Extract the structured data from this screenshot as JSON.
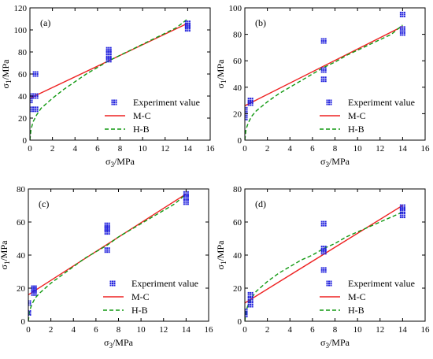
{
  "chart_data": [
    {
      "type": "scatter",
      "panel_label": "(a)",
      "xlabel": {
        "main": "σ",
        "sub": "3",
        "unit": "/MPa"
      },
      "ylabel": {
        "main": "σ",
        "sub": "1",
        "unit": "/MPa"
      },
      "xlim": [
        0,
        16
      ],
      "ylim": [
        0,
        120
      ],
      "xticks": [
        0,
        2,
        4,
        6,
        8,
        10,
        12,
        14,
        16
      ],
      "yticks": [
        0,
        20,
        40,
        60,
        80,
        100,
        120
      ],
      "legend_position": "lower-right",
      "series": [
        {
          "name": "Experiment value",
          "kind": "points",
          "color": "#2222dd",
          "x": [
            0,
            0,
            0,
            0.5,
            0.5,
            0.5,
            7,
            7,
            7,
            7,
            14,
            14,
            14
          ],
          "y": [
            28,
            36,
            40,
            28,
            40,
            60,
            73,
            76,
            80,
            82,
            101,
            104,
            106
          ]
        },
        {
          "name": "M-C",
          "kind": "line",
          "color": "#ee2222",
          "style": "solid",
          "x": [
            0,
            14
          ],
          "y": [
            38,
            106
          ]
        },
        {
          "name": "H-B",
          "kind": "line",
          "color": "#119911",
          "style": "dashed",
          "x": [
            0,
            0.1,
            0.3,
            0.6,
            1,
            2,
            3,
            4,
            5,
            6,
            7,
            8,
            9,
            10,
            11,
            12,
            13,
            14
          ],
          "y": [
            0,
            10,
            17,
            23,
            29,
            38,
            46,
            53,
            60,
            66,
            72,
            77,
            82,
            87,
            92,
            97,
            102,
            110
          ]
        }
      ]
    },
    {
      "type": "scatter",
      "panel_label": "(b)",
      "xlabel": {
        "main": "σ",
        "sub": "3",
        "unit": "/MPa"
      },
      "ylabel": {
        "main": "σ",
        "sub": "1",
        "unit": "/MPa"
      },
      "xlim": [
        0,
        16
      ],
      "ylim": [
        0,
        100
      ],
      "xticks": [
        0,
        2,
        4,
        6,
        8,
        10,
        12,
        14,
        16
      ],
      "yticks": [
        0,
        20,
        40,
        60,
        80,
        100
      ],
      "legend_position": "lower-right",
      "series": [
        {
          "name": "Experiment value",
          "kind": "points",
          "color": "#2222dd",
          "x": [
            0,
            0,
            0,
            0.5,
            0.5,
            7,
            7,
            7,
            14,
            14,
            14
          ],
          "y": [
            17,
            20,
            23,
            28,
            30,
            46,
            53,
            75,
            81,
            84,
            95
          ]
        },
        {
          "name": "M-C",
          "kind": "line",
          "color": "#ee2222",
          "style": "solid",
          "x": [
            0,
            14
          ],
          "y": [
            26,
            86
          ]
        },
        {
          "name": "H-B",
          "kind": "line",
          "color": "#119911",
          "style": "dashed",
          "x": [
            0,
            0.1,
            0.3,
            0.6,
            1,
            2,
            3,
            4,
            5,
            6,
            7,
            8,
            9,
            10,
            11,
            12,
            13,
            14
          ],
          "y": [
            0,
            8,
            13,
            18,
            22,
            29,
            35,
            40,
            45,
            50,
            55,
            59,
            64,
            68,
            72,
            76,
            80,
            87
          ]
        }
      ]
    },
    {
      "type": "scatter",
      "panel_label": "(c)",
      "xlabel": {
        "main": "σ",
        "sub": "3",
        "unit": "/MPa"
      },
      "ylabel": {
        "main": "σ",
        "sub": "1",
        "unit": "/MPa"
      },
      "xlim": [
        0,
        16
      ],
      "ylim": [
        0,
        80
      ],
      "xticks": [
        0,
        2,
        4,
        6,
        8,
        10,
        12,
        14,
        16
      ],
      "yticks": [
        0,
        20,
        40,
        60,
        80
      ],
      "legend_position": "lower-right",
      "series": [
        {
          "name": "Experiment value",
          "kind": "points",
          "color": "#2222dd",
          "x": [
            0,
            0,
            0.5,
            0.5,
            0.5,
            7,
            7,
            7,
            7,
            14,
            14,
            14
          ],
          "y": [
            5,
            11,
            17,
            19,
            20,
            43,
            54,
            56,
            58,
            72,
            75,
            77
          ]
        },
        {
          "name": "M-C",
          "kind": "line",
          "color": "#ee2222",
          "style": "solid",
          "x": [
            0,
            14
          ],
          "y": [
            16,
            77
          ]
        },
        {
          "name": "H-B",
          "kind": "line",
          "color": "#119911",
          "style": "dashed",
          "x": [
            0,
            0.1,
            0.3,
            0.6,
            1,
            2,
            3,
            4,
            5,
            6,
            7,
            8,
            9,
            10,
            11,
            12,
            13,
            14
          ],
          "y": [
            0,
            6,
            10,
            14,
            17,
            23,
            28,
            33,
            38,
            42,
            46,
            51,
            55,
            59,
            63,
            67,
            71,
            77
          ]
        }
      ]
    },
    {
      "type": "scatter",
      "panel_label": "(d)",
      "xlabel": {
        "main": "σ",
        "sub": "3",
        "unit": "/MPa"
      },
      "ylabel": {
        "main": "σ",
        "sub": "1",
        "unit": "/MPa"
      },
      "xlim": [
        0,
        16
      ],
      "ylim": [
        0,
        80
      ],
      "xticks": [
        0,
        2,
        4,
        6,
        8,
        10,
        12,
        14,
        16
      ],
      "yticks": [
        0,
        20,
        40,
        60,
        80
      ],
      "legend_position": "lower-right",
      "series": [
        {
          "name": "Experiment value",
          "kind": "points",
          "color": "#2222dd",
          "x": [
            0,
            0,
            0.5,
            0.5,
            0.5,
            7,
            7,
            7,
            7,
            14,
            14,
            14
          ],
          "y": [
            4,
            6,
            10,
            13,
            16,
            31,
            42,
            44,
            59,
            64,
            67,
            69
          ]
        },
        {
          "name": "M-C",
          "kind": "line",
          "color": "#ee2222",
          "style": "solid",
          "x": [
            0,
            14
          ],
          "y": [
            11,
            70
          ]
        },
        {
          "name": "H-B",
          "kind": "line",
          "color": "#119911",
          "style": "dashed",
          "x": [
            0,
            0.1,
            0.3,
            0.6,
            1,
            2,
            3,
            4,
            5,
            6,
            7,
            8,
            9,
            10,
            11,
            12,
            13,
            14
          ],
          "y": [
            0,
            6,
            10,
            14,
            18,
            24,
            29,
            33,
            37,
            40,
            44,
            47,
            51,
            54,
            57,
            60,
            63,
            66
          ]
        }
      ]
    }
  ]
}
